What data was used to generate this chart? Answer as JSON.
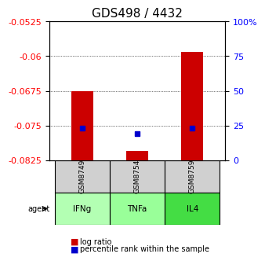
{
  "title": "GDS498 / 4432",
  "samples": [
    "GSM8749",
    "GSM8754",
    "GSM8759"
  ],
  "agents": [
    "IFNg",
    "TNFa",
    "IL4"
  ],
  "agent_colors": [
    "#b3ffb3",
    "#ccffcc",
    "#66ff66"
  ],
  "sample_bg_color": "#d0d0d0",
  "ylim_left": [
    -0.0825,
    -0.0525
  ],
  "yticks_left": [
    -0.0825,
    -0.075,
    -0.0675,
    -0.06,
    -0.0525
  ],
  "ylim_right": [
    0,
    100
  ],
  "yticks_right": [
    0,
    25,
    50,
    75,
    100
  ],
  "ytick_labels_right": [
    "0",
    "25",
    "50",
    "75",
    "100%"
  ],
  "bar_bottom": -0.0825,
  "log_ratio": [
    -0.0675,
    -0.0805,
    -0.059
  ],
  "percentile": [
    23,
    19,
    23
  ],
  "bar_width": 0.4,
  "bar_color": "#cc0000",
  "dot_color": "#0000cc",
  "title_fontsize": 11,
  "tick_fontsize": 8,
  "label_fontsize": 8,
  "legend_fontsize": 7
}
